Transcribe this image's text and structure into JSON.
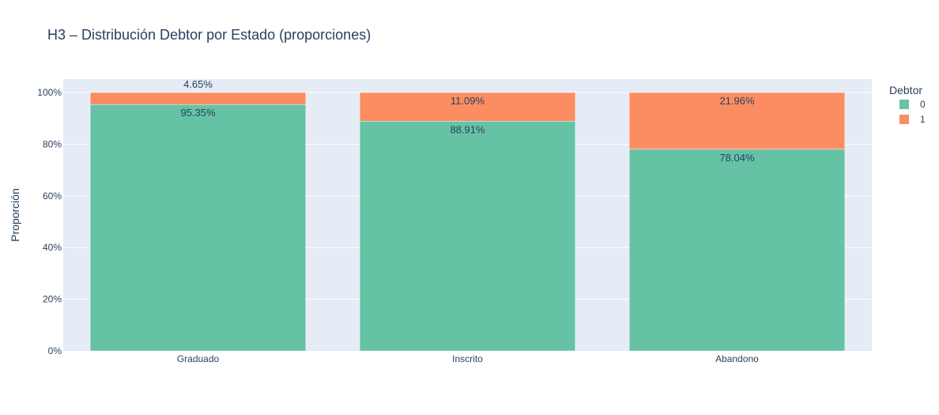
{
  "chart_data": {
    "type": "bar",
    "stacked": true,
    "title": "H3 – Distribución Debtor por Estado (proporciones)",
    "xlabel": "",
    "ylabel": "Proporción",
    "categories": [
      "Graduado",
      "Inscrito",
      "Abandono"
    ],
    "series": [
      {
        "name": "0",
        "color": "#66c2a5",
        "values": [
          95.35,
          88.91,
          78.04
        ],
        "labels": [
          "95.35%",
          "88.91%",
          "78.04%"
        ]
      },
      {
        "name": "1",
        "color": "#fc8d62",
        "values": [
          4.65,
          11.09,
          21.96
        ],
        "labels": [
          "4.65%",
          "11.09%",
          "21.96%"
        ]
      }
    ],
    "ylim": [
      0,
      100
    ],
    "yticks": [
      0,
      20,
      40,
      60,
      80,
      100
    ],
    "ytick_labels": [
      "0%",
      "20%",
      "40%",
      "60%",
      "80%",
      "100%"
    ],
    "grid": true,
    "legend": {
      "title": "Debtor",
      "placement": "top-right"
    },
    "plot_bg": "#e5ecf6"
  }
}
